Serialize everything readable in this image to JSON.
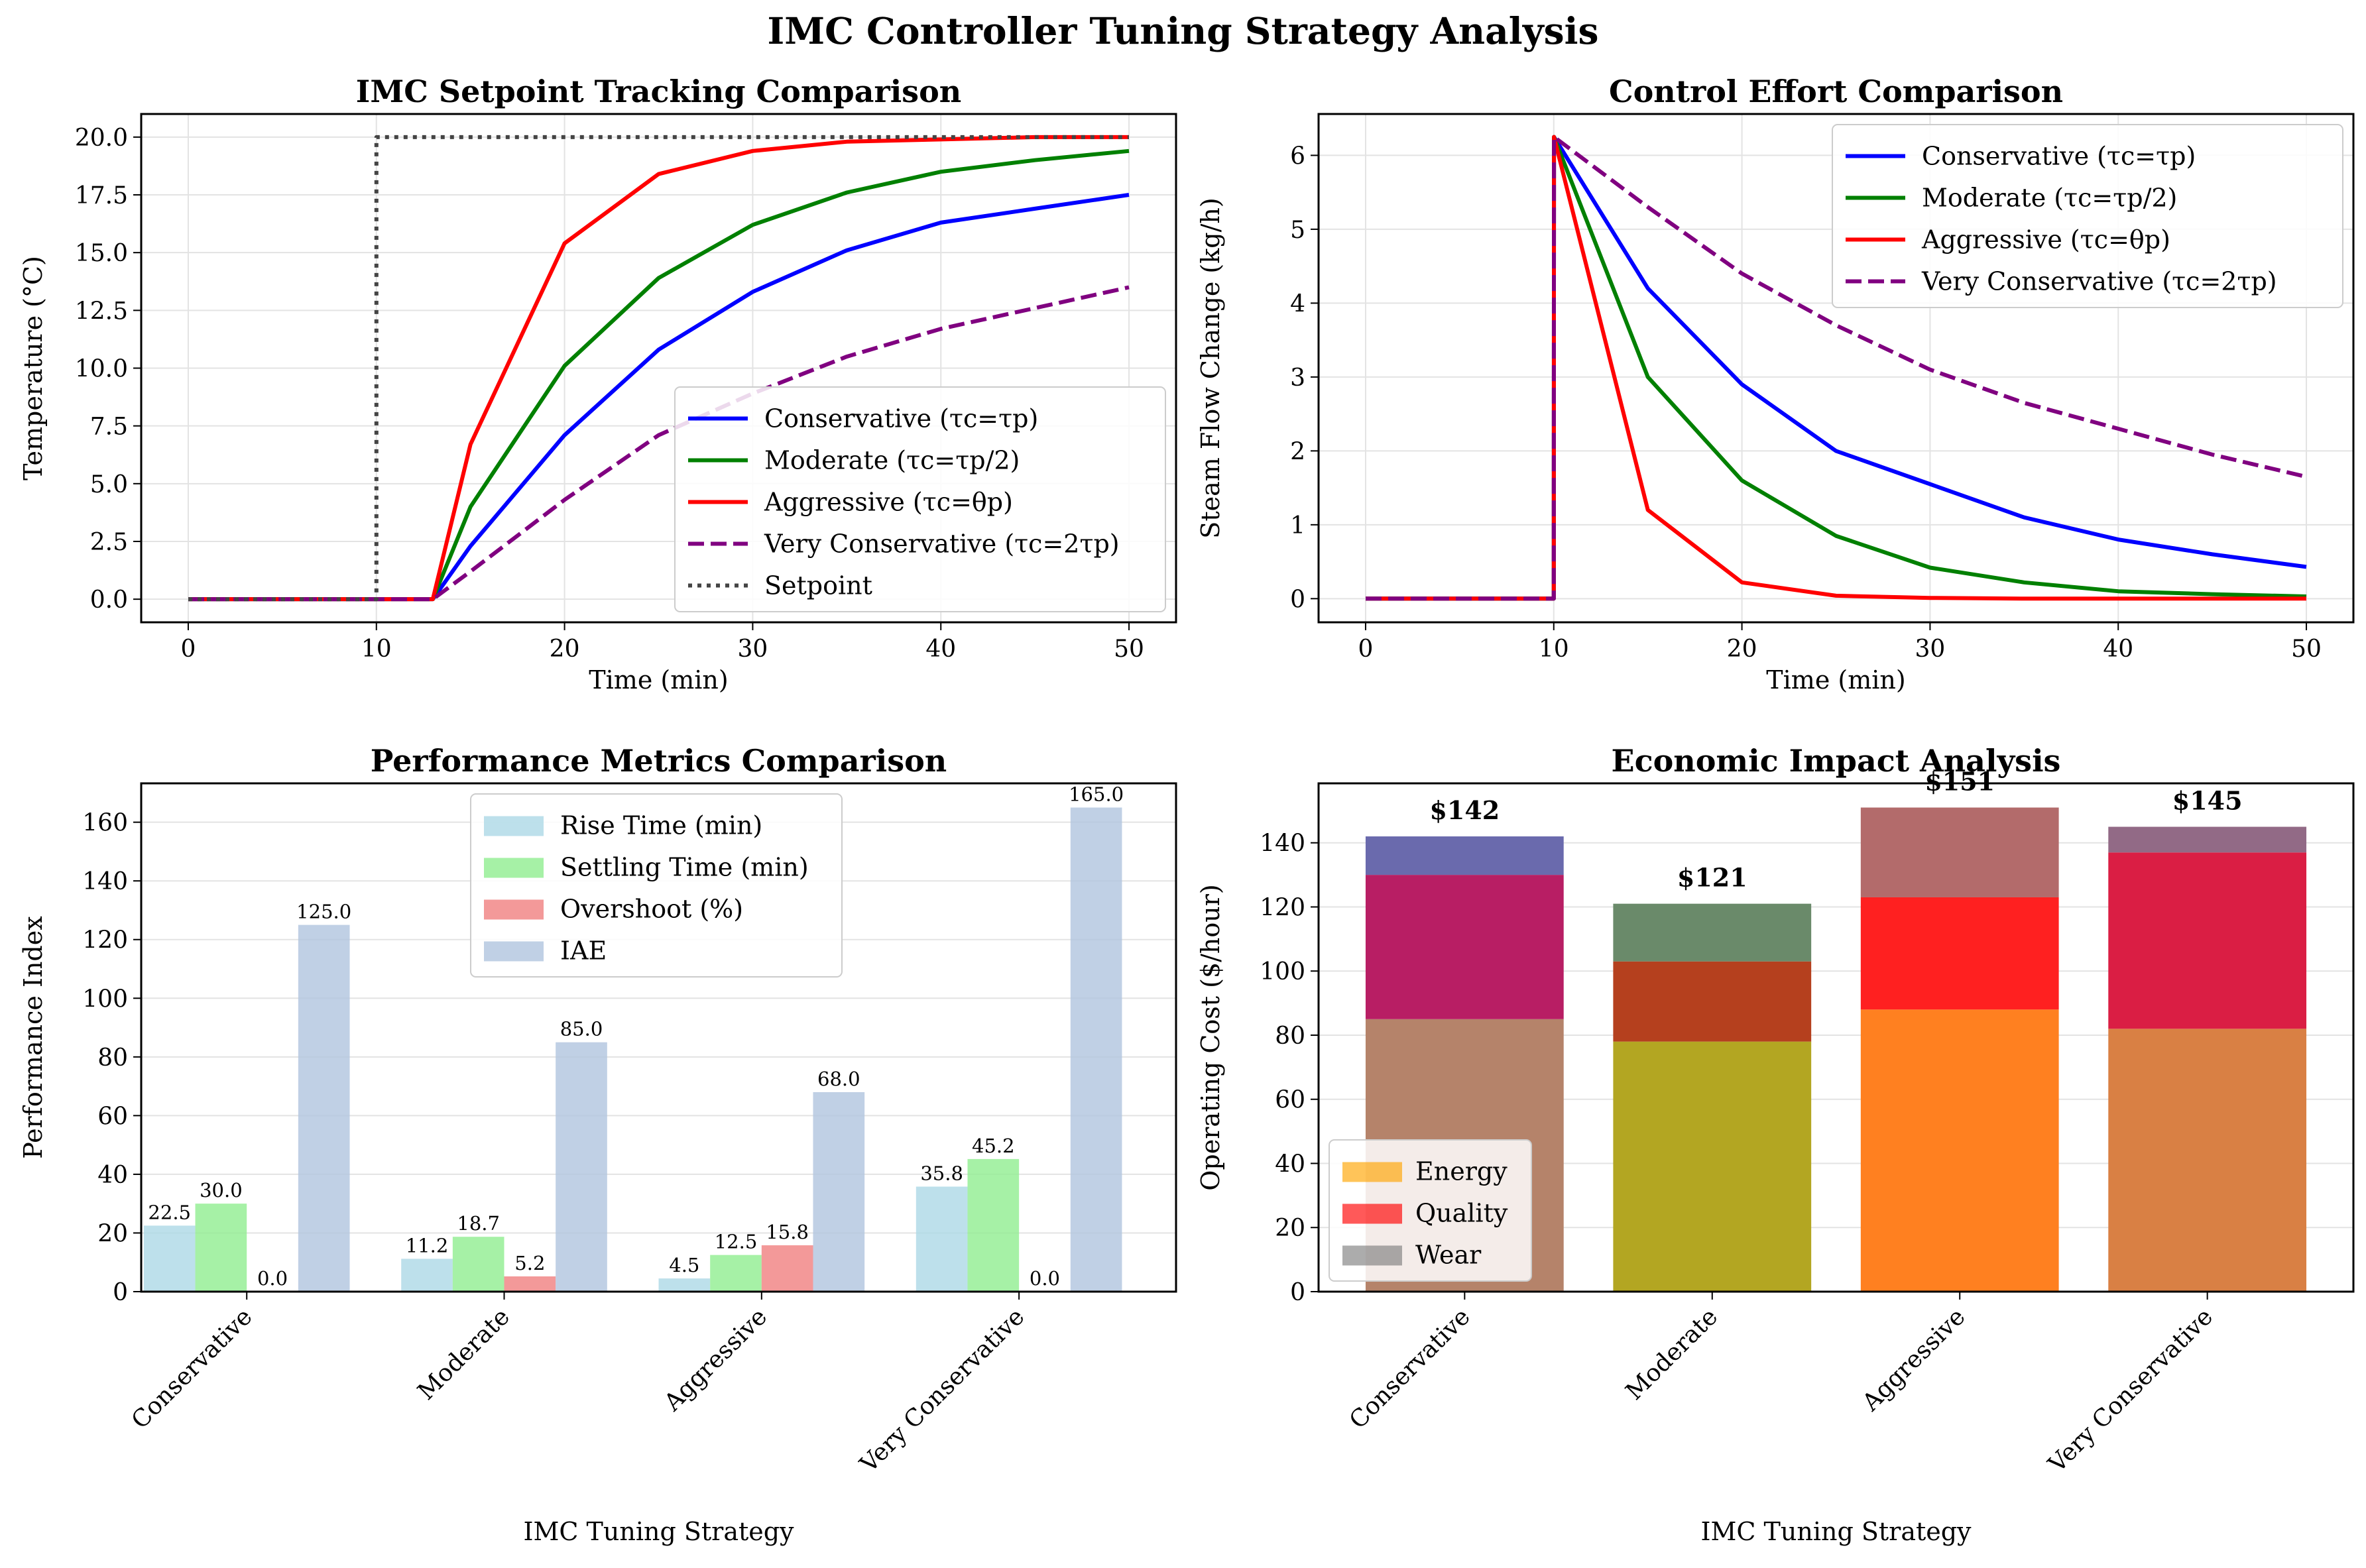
{
  "title": "IMC Controller Tuning Strategy Analysis",
  "chart_data": [
    {
      "type": "line",
      "title": "IMC Setpoint Tracking Comparison",
      "xlabel": "Time (min)",
      "ylabel": "Temperature (°C)",
      "xlim": [
        -2.5,
        52.5
      ],
      "ylim": [
        -1.0,
        21.0
      ],
      "xticks": [
        0,
        10,
        20,
        30,
        40,
        50
      ],
      "yticks": [
        "0.0",
        "2.5",
        "5.0",
        "7.5",
        "10.0",
        "12.5",
        "15.0",
        "17.5",
        "20.0"
      ],
      "grid": true,
      "legend_position": "lower-right",
      "x": [
        0,
        5,
        10,
        13,
        15,
        20,
        25,
        30,
        35,
        40,
        45,
        50
      ],
      "series": [
        {
          "name": "Conservative (τc=τp)",
          "color": "#0000ff",
          "style": "solid",
          "values": [
            0,
            0,
            0,
            0,
            2.3,
            7.1,
            10.8,
            13.3,
            15.1,
            16.3,
            16.9,
            17.5
          ]
        },
        {
          "name": "Moderate (τc=τp/2)",
          "color": "#008000",
          "style": "solid",
          "values": [
            0,
            0,
            0,
            0,
            4.0,
            10.1,
            13.9,
            16.2,
            17.6,
            18.5,
            19.0,
            19.4
          ]
        },
        {
          "name": "Aggressive (τc=θp)",
          "color": "#ff0000",
          "style": "solid",
          "values": [
            0,
            0,
            0,
            0,
            6.7,
            15.4,
            18.4,
            19.4,
            19.8,
            19.9,
            20.0,
            20.0
          ]
        },
        {
          "name": "Very Conservative (τc=2τp)",
          "color": "#800080",
          "style": "dashed",
          "values": [
            0,
            0,
            0,
            0,
            1.2,
            4.3,
            7.1,
            8.9,
            10.5,
            11.7,
            12.6,
            13.5
          ]
        },
        {
          "name": "Setpoint",
          "color": "#444444",
          "style": "dotted",
          "x": [
            0,
            10,
            10,
            50
          ],
          "values": [
            0,
            0,
            20,
            20
          ]
        }
      ]
    },
    {
      "type": "line",
      "title": "Control Effort Comparison",
      "xlabel": "Time (min)",
      "ylabel": "Steam Flow Change (kg/h)",
      "xlim": [
        -2.5,
        52.5
      ],
      "ylim": [
        -0.32,
        6.56
      ],
      "xticks": [
        0,
        10,
        20,
        30,
        40,
        50
      ],
      "yticks": [
        "0",
        "1",
        "2",
        "3",
        "4",
        "5",
        "6"
      ],
      "grid": true,
      "legend_position": "upper-right",
      "x": [
        0,
        5,
        10,
        10.01,
        15,
        20,
        25,
        30,
        35,
        40,
        45,
        50
      ],
      "series": [
        {
          "name": "Conservative (τc=τp)",
          "color": "#0000ff",
          "style": "solid",
          "values": [
            0,
            0,
            0,
            6.25,
            4.2,
            2.9,
            2.0,
            1.55,
            1.1,
            0.8,
            0.6,
            0.43
          ]
        },
        {
          "name": "Moderate (τc=τp/2)",
          "color": "#008000",
          "style": "solid",
          "values": [
            0,
            0,
            0,
            6.25,
            3.0,
            1.6,
            0.85,
            0.42,
            0.22,
            0.1,
            0.06,
            0.03
          ]
        },
        {
          "name": "Aggressive (τc=θp)",
          "color": "#ff0000",
          "style": "solid",
          "values": [
            0,
            0,
            0,
            6.25,
            1.2,
            0.22,
            0.04,
            0.01,
            0,
            0,
            0,
            0
          ]
        },
        {
          "name": "Very Conservative (τc=2τp)",
          "color": "#800080",
          "style": "dashed",
          "values": [
            0,
            0,
            0,
            6.25,
            5.3,
            4.4,
            3.7,
            3.1,
            2.65,
            2.3,
            1.95,
            1.65
          ]
        }
      ]
    },
    {
      "type": "bar",
      "title": "Performance Metrics Comparison",
      "xlabel": "IMC Tuning Strategy",
      "ylabel": "Performance Index",
      "ylim": [
        0,
        173.25
      ],
      "yticks": [
        "0",
        "20",
        "40",
        "60",
        "80",
        "100",
        "120",
        "140",
        "160"
      ],
      "grid": true,
      "legend_position": "upper-center",
      "categories": [
        "Conservative",
        "Moderate",
        "Aggressive",
        "Very Conservative"
      ],
      "series": [
        {
          "name": "Rise Time (min)",
          "color": "#add8e6",
          "values": [
            22.5,
            11.2,
            4.5,
            35.8
          ],
          "labels": [
            "22.5",
            "11.2",
            "4.5",
            "35.8"
          ]
        },
        {
          "name": "Settling Time (min)",
          "color": "#90ee90",
          "values": [
            30.0,
            18.7,
            12.5,
            45.2
          ],
          "labels": [
            "30.0",
            "18.7",
            "12.5",
            "45.2"
          ]
        },
        {
          "name": "Overshoot (%)",
          "color": "#f08080",
          "values": [
            0.0,
            5.2,
            15.8,
            0.0
          ],
          "labels": [
            "0.0",
            "5.2",
            "15.8",
            "0.0"
          ]
        },
        {
          "name": "IAE",
          "color": "#b0c4de",
          "values": [
            125.0,
            85.0,
            68.0,
            165.0
          ],
          "labels": [
            "125.0",
            "85.0",
            "68.0",
            "165.0"
          ]
        }
      ]
    },
    {
      "type": "bar",
      "stacked": true,
      "title": "Economic Impact Analysis",
      "xlabel": "IMC Tuning Strategy",
      "ylabel": "Operating Cost ($/hour)",
      "ylim": [
        0,
        158.55
      ],
      "yticks": [
        "0",
        "20",
        "40",
        "60",
        "80",
        "100",
        "120",
        "140"
      ],
      "grid": true,
      "legend_position": "lower-left",
      "categories": [
        "Conservative",
        "Moderate",
        "Aggressive",
        "Very Conservative"
      ],
      "totals": [
        "$142",
        "$121",
        "$151",
        "$145"
      ],
      "series": [
        {
          "name": "Energy",
          "color": "#ffa500",
          "values": [
            85,
            78,
            88,
            82
          ]
        },
        {
          "name": "Quality",
          "color": "#ff0000",
          "values": [
            45,
            25,
            35,
            55
          ]
        },
        {
          "name": "Wear",
          "color": "#808080",
          "values": [
            12,
            18,
            28,
            8
          ]
        }
      ],
      "segment_colors": [
        [
          "#b5836a",
          "#b81e64",
          "#6a6aad"
        ],
        [
          "#b3a622",
          "#b5401e",
          "#6a8a6a"
        ],
        [
          "#ff8020",
          "#ff2020",
          "#b36b6b"
        ],
        [
          "#d98044",
          "#da1e44",
          "#926a86"
        ]
      ]
    }
  ]
}
